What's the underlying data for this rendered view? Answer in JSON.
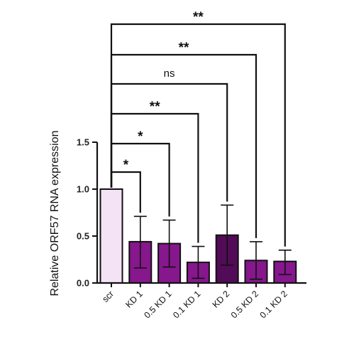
{
  "chart_data": {
    "type": "bar",
    "title": "",
    "xlabel": "",
    "ylabel": "Relative ORF57 RNA expression",
    "ylim": [
      0,
      1.5
    ],
    "yticks": [
      "0.0",
      "0.5",
      "1.0",
      "1.5"
    ],
    "grid": false,
    "categories": [
      "scr",
      "KD 1",
      "0.5 KD 1",
      "0.1 KD 1",
      "KD 2",
      "0.5 KD 2",
      "0.1 KD 2"
    ],
    "values": [
      1.0,
      0.44,
      0.42,
      0.22,
      0.51,
      0.24,
      0.23
    ],
    "error_upper": [
      1.0,
      0.71,
      0.67,
      0.39,
      0.83,
      0.44,
      0.35
    ],
    "error_lower": [
      1.0,
      0.16,
      0.17,
      0.05,
      0.19,
      0.04,
      0.09
    ],
    "colors": [
      "#f3e3f5",
      "#86178c",
      "#86178c",
      "#86178c",
      "#520b57",
      "#86178c",
      "#86178c"
    ],
    "significance": [
      {
        "from": "scr",
        "to": "KD 1",
        "label": "*"
      },
      {
        "from": "scr",
        "to": "0.5 KD 1",
        "label": "*"
      },
      {
        "from": "scr",
        "to": "0.1 KD 1",
        "label": "**"
      },
      {
        "from": "scr",
        "to": "KD 2",
        "label": "ns"
      },
      {
        "from": "scr",
        "to": "0.5 KD 2",
        "label": "**"
      },
      {
        "from": "scr",
        "to": "0.1 KD 2",
        "label": "**"
      }
    ]
  }
}
